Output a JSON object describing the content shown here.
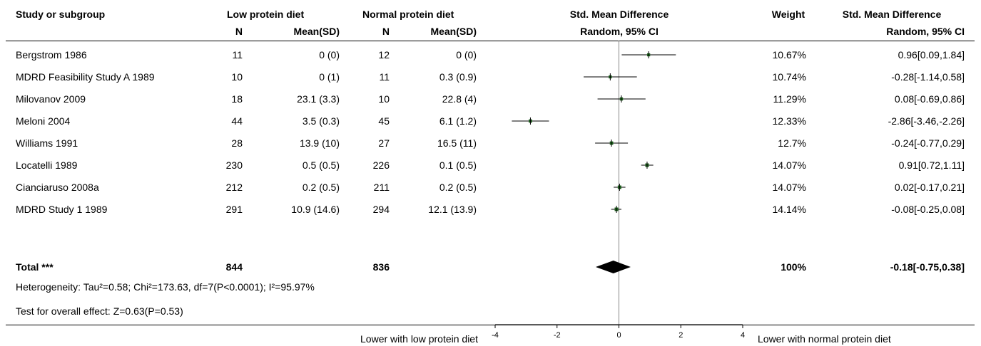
{
  "headers": {
    "study": "Study or subgroup",
    "group1": "Low protein diet",
    "group2": "Normal protein diet",
    "smd_plot": "Std. Mean Difference",
    "smd_plot_sub": "Random, 95% CI",
    "weight": "Weight",
    "smd_col": "Std. Mean Difference",
    "smd_col_sub": "Random, 95% CI",
    "n": "N",
    "meansd": "Mean(SD)"
  },
  "rows": [
    {
      "study": "Bergstrom 1986",
      "n1": "11",
      "m1": "0 (0)",
      "n2": "12",
      "m2": "0 (0)",
      "weight": "10.67%",
      "ci": "0.96[0.09,1.84]"
    },
    {
      "study": "MDRD Feasibility Study A 1989",
      "n1": "10",
      "m1": "0 (1)",
      "n2": "11",
      "m2": "0.3 (0.9)",
      "weight": "10.74%",
      "ci": "-0.28[-1.14,0.58]"
    },
    {
      "study": "Milovanov 2009",
      "n1": "18",
      "m1": "23.1 (3.3)",
      "n2": "10",
      "m2": "22.8 (4)",
      "weight": "11.29%",
      "ci": "0.08[-0.69,0.86]"
    },
    {
      "study": "Meloni 2004",
      "n1": "44",
      "m1": "3.5 (0.3)",
      "n2": "45",
      "m2": "6.1 (1.2)",
      "weight": "12.33%",
      "ci": "-2.86[-3.46,-2.26]"
    },
    {
      "study": "Williams 1991",
      "n1": "28",
      "m1": "13.9 (10)",
      "n2": "27",
      "m2": "16.5 (11)",
      "weight": "12.7%",
      "ci": "-0.24[-0.77,0.29]"
    },
    {
      "study": "Locatelli 1989",
      "n1": "230",
      "m1": "0.5 (0.5)",
      "n2": "226",
      "m2": "0.1 (0.5)",
      "weight": "14.07%",
      "ci": "0.91[0.72,1.11]"
    },
    {
      "study": "Cianciaruso 2008a",
      "n1": "212",
      "m1": "0.2 (0.5)",
      "n2": "211",
      "m2": "0.2 (0.5)",
      "weight": "14.07%",
      "ci": "0.02[-0.17,0.21]"
    },
    {
      "study": "MDRD Study 1 1989",
      "n1": "291",
      "m1": "10.9 (14.6)",
      "n2": "294",
      "m2": "12.1 (13.9)",
      "weight": "14.14%",
      "ci": "-0.08[-0.25,0.08]"
    }
  ],
  "total": {
    "label": "Total ***",
    "n1": "844",
    "n2": "836",
    "weight": "100%",
    "ci": "-0.18[-0.75,0.38]"
  },
  "heterogeneity": "Heterogeneity: Tau²=0.58; Chi²=173.63, df=7(P<0.0001); I²=95.97%",
  "overall_effect": "Test for overall effect: Z=0.63(P=0.53)",
  "footer": {
    "left_label": "Lower with low protein diet",
    "right_label": "Lower with normal protein diet"
  },
  "colors": {
    "marker": "#1a5c1a",
    "line": "#000000"
  },
  "chart_data": {
    "type": "forest",
    "xlim": [
      -4,
      4
    ],
    "ticks": [
      "-4",
      "-2",
      "0",
      "2",
      "4"
    ],
    "reference_line": 0,
    "studies": [
      {
        "name": "Bergstrom 1986",
        "estimate": 0.96,
        "lower": 0.09,
        "upper": 1.84,
        "weight": 10.67
      },
      {
        "name": "MDRD Feasibility Study A 1989",
        "estimate": -0.28,
        "lower": -1.14,
        "upper": 0.58,
        "weight": 10.74
      },
      {
        "name": "Milovanov 2009",
        "estimate": 0.08,
        "lower": -0.69,
        "upper": 0.86,
        "weight": 11.29
      },
      {
        "name": "Meloni 2004",
        "estimate": -2.86,
        "lower": -3.46,
        "upper": -2.26,
        "weight": 12.33
      },
      {
        "name": "Williams 1991",
        "estimate": -0.24,
        "lower": -0.77,
        "upper": 0.29,
        "weight": 12.7
      },
      {
        "name": "Locatelli 1989",
        "estimate": 0.91,
        "lower": 0.72,
        "upper": 1.11,
        "weight": 14.07
      },
      {
        "name": "Cianciaruso 2008a",
        "estimate": 0.02,
        "lower": -0.17,
        "upper": 0.21,
        "weight": 14.07
      },
      {
        "name": "MDRD Study 1 1989",
        "estimate": -0.08,
        "lower": -0.25,
        "upper": 0.08,
        "weight": 14.14
      }
    ],
    "pooled": {
      "estimate": -0.18,
      "lower": -0.75,
      "upper": 0.38
    }
  }
}
